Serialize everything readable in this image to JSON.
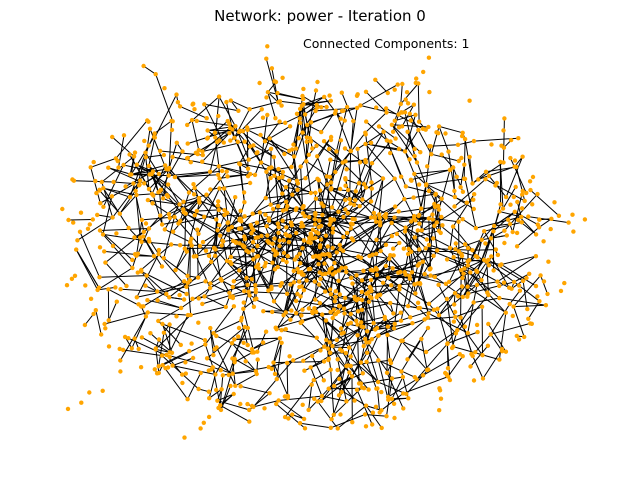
{
  "figure": {
    "title": "Network: power - Iteration 0",
    "annotation": "Connected Components: 1"
  },
  "network": {
    "name": "power",
    "iteration": 0,
    "connected_components": 1,
    "node_color": "#FFA500",
    "edge_color": "#000000",
    "background_color": "#FFFFFF"
  }
}
